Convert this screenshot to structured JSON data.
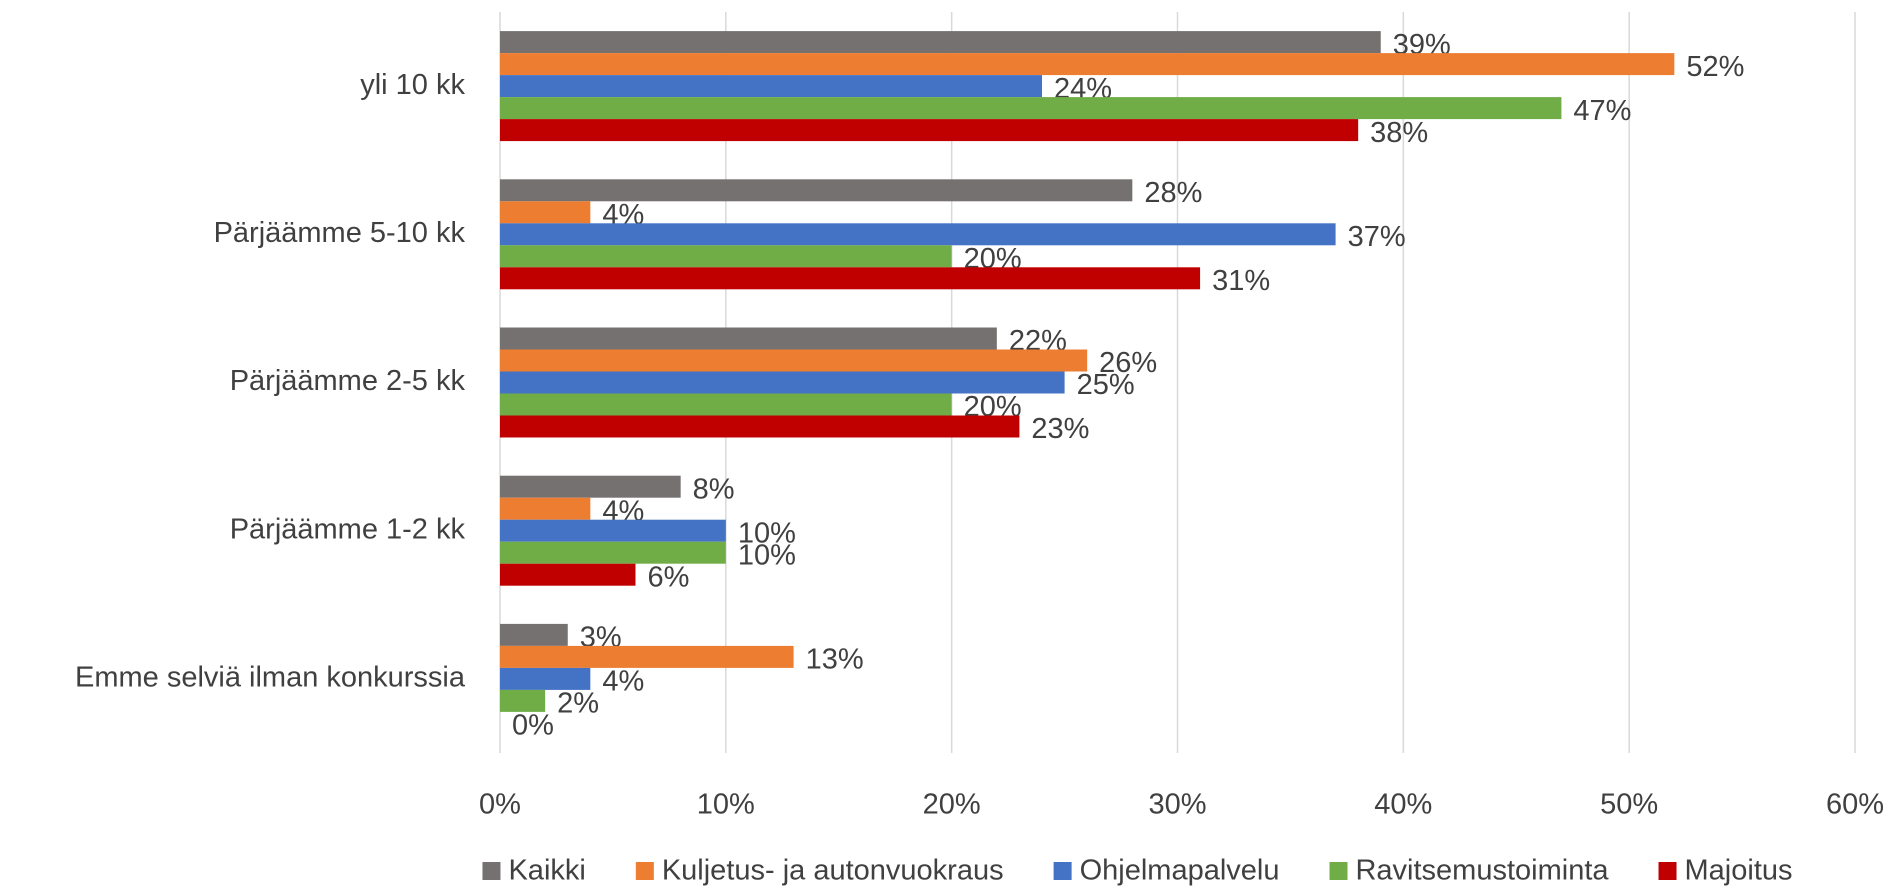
{
  "chart_data": {
    "type": "bar",
    "orientation": "horizontal",
    "categories": [
      "yli 10 kk",
      "Pärjäämme 5-10 kk",
      "Pärjäämme 2-5 kk",
      "Pärjäämme 1-2 kk",
      "Emme selviä ilman konkurssia"
    ],
    "series": [
      {
        "name": "Kaikki",
        "color": "#767171",
        "values": [
          39,
          28,
          22,
          8,
          3
        ],
        "value_labels": [
          "39%",
          "28%",
          "22%",
          "8%",
          "3%"
        ]
      },
      {
        "name": "Kuljetus- ja autonvuokraus",
        "color": "#ed7d31",
        "values": [
          52,
          4,
          26,
          4,
          13
        ],
        "value_labels": [
          "52%",
          "4%",
          "26%",
          "4%",
          "13%"
        ]
      },
      {
        "name": "Ohjelmapalvelu",
        "color": "#4472c4",
        "values": [
          24,
          37,
          25,
          10,
          4
        ],
        "value_labels": [
          "24%",
          "37%",
          "25%",
          "10%",
          "4%"
        ]
      },
      {
        "name": "Ravitsemustoiminta",
        "color": "#70ad47",
        "values": [
          47,
          20,
          20,
          10,
          2
        ],
        "value_labels": [
          "47%",
          "20%",
          "20%",
          "10%",
          "2%"
        ]
      },
      {
        "name": "Majoitus",
        "color": "#c00000",
        "values": [
          38,
          31,
          23,
          6,
          0
        ],
        "value_labels": [
          "38%",
          "31%",
          "23%",
          "6%",
          "0%"
        ]
      }
    ],
    "xlim": [
      0,
      60
    ],
    "xticks": [
      {
        "value": 0,
        "label": "0%"
      },
      {
        "value": 10,
        "label": "10%"
      },
      {
        "value": 20,
        "label": "20%"
      },
      {
        "value": 30,
        "label": "30%"
      },
      {
        "value": 40,
        "label": "40%"
      },
      {
        "value": 50,
        "label": "50%"
      },
      {
        "value": 60,
        "label": "60%"
      }
    ],
    "grid": true,
    "legend": "bottom"
  }
}
